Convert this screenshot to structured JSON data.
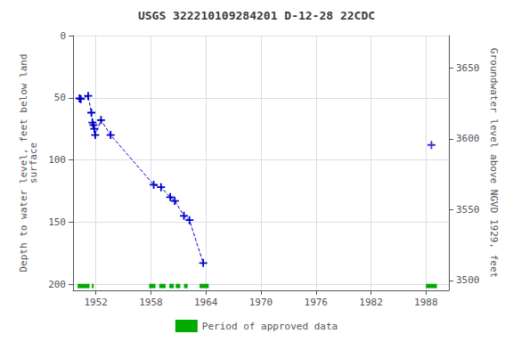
{
  "chart_data": {
    "type": "line",
    "title": "USGS 322210109284201 D-12-28 22CDC",
    "ylabel": "Depth to water level, feet below land\nsurface",
    "y2label": "Groundwater level above NGVD 1929, feet",
    "xlim": [
      1949.5,
      1990.5
    ],
    "xticks": [
      1952,
      1958,
      1964,
      1970,
      1976,
      1982,
      1988
    ],
    "ylim": [
      0,
      205
    ],
    "yticks": [
      0,
      50,
      100,
      150,
      200
    ],
    "y2lim": [
      3493,
      3673
    ],
    "y2ticks": [
      3500,
      3550,
      3600,
      3650
    ],
    "grid": true,
    "legend": "bottom",
    "series": [
      {
        "type": "line",
        "color": "#0000cc",
        "line_style": "dashed",
        "marker": "plus",
        "x": [
          1950.2,
          1950.35,
          1951.15,
          1951.5,
          1951.62,
          1951.72,
          1951.82,
          1951.92,
          1952.55,
          1953.6,
          1958.3,
          1959.1,
          1960.1,
          1960.6,
          1961.6,
          1962.2,
          1963.7
        ],
        "values": [
          50.5,
          51.0,
          48.5,
          62.0,
          70.0,
          72.0,
          75.0,
          80.0,
          68.0,
          80.0,
          120.0,
          122.0,
          130.0,
          133.0,
          145.0,
          148.5,
          183.0
        ]
      },
      {
        "type": "scatter",
        "color": "#0000cc",
        "marker": "plus",
        "x": [
          1988.6
        ],
        "values": [
          88.0
        ]
      },
      {
        "type": "bar",
        "name": "Period of approved data",
        "color": "#00aa00",
        "y": 201.5,
        "height": 3.5,
        "periods": [
          [
            1950.0,
            1951.3
          ],
          [
            1951.55,
            1951.75
          ],
          [
            1957.8,
            1958.5
          ],
          [
            1958.9,
            1959.6
          ],
          [
            1960.0,
            1960.5
          ],
          [
            1960.7,
            1961.2
          ],
          [
            1961.6,
            1962.0
          ],
          [
            1963.3,
            1964.3
          ],
          [
            1988.0,
            1989.2
          ]
        ]
      }
    ]
  }
}
